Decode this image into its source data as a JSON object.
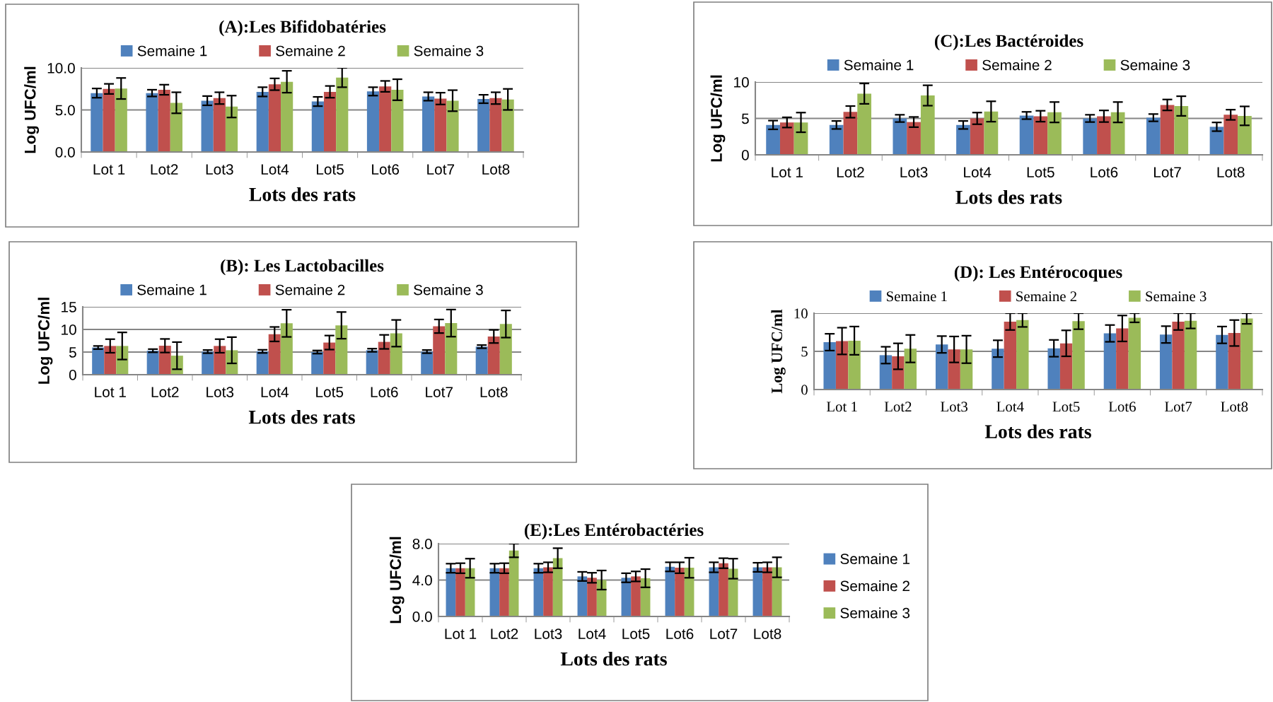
{
  "chart_data": [
    {
      "type": "bar",
      "title": "(A):Les Bifidobatéries",
      "xlabel": "Lots des rats",
      "ylabel": "Log UFC/ml",
      "categories": [
        "Lot 1",
        "Lot2",
        "Lot3",
        "Lot4",
        "Lot5",
        "Lot6",
        "Lot7",
        "Lot8"
      ],
      "ylim": [
        0,
        10
      ],
      "yticks": [
        {
          "value": 0,
          "label": "0.0"
        },
        {
          "value": 5,
          "label": "5.0"
        },
        {
          "value": 10,
          "label": "10.0"
        }
      ],
      "grid": "y",
      "legend": "top",
      "series": [
        {
          "name": "Semaine 1",
          "color": "#4f81bd",
          "values": [
            7.0,
            7.0,
            6.1,
            7.15,
            6.0,
            7.2,
            6.6,
            6.3
          ],
          "errors": [
            0.55,
            0.4,
            0.55,
            0.55,
            0.55,
            0.5,
            0.5,
            0.5
          ]
        },
        {
          "name": "Semaine 2",
          "color": "#c0504d",
          "values": [
            7.5,
            7.4,
            6.4,
            8.05,
            7.15,
            7.8,
            6.35,
            6.4
          ],
          "errors": [
            0.6,
            0.6,
            0.7,
            0.7,
            0.7,
            0.65,
            0.7,
            0.7
          ]
        },
        {
          "name": "Semaine 3",
          "color": "#9bbb59",
          "values": [
            7.55,
            5.85,
            5.4,
            8.35,
            8.85,
            7.4,
            6.1,
            6.25
          ],
          "errors": [
            1.25,
            1.25,
            1.3,
            1.3,
            1.15,
            1.25,
            1.25,
            1.25
          ]
        }
      ]
    },
    {
      "type": "bar",
      "title": "(C):Les Bactéroides",
      "xlabel": "Lots des rats",
      "ylabel": "Log UFC/ml",
      "categories": [
        "Lot 1",
        "Lot2",
        "Lot3",
        "Lot4",
        "Lot5",
        "Lot6",
        "Lot7",
        "Lot8"
      ],
      "ylim": [
        0,
        10
      ],
      "yticks": [
        0,
        5,
        10
      ],
      "grid": "y",
      "legend": "top",
      "series": [
        {
          "name": "Semaine 1",
          "color": "#4f81bd",
          "values": [
            4.1,
            4.1,
            5.0,
            4.1,
            5.4,
            5.0,
            5.1,
            3.85
          ],
          "errors": [
            0.6,
            0.55,
            0.5,
            0.55,
            0.5,
            0.5,
            0.5,
            0.6
          ]
        },
        {
          "name": "Semaine 2",
          "color": "#c0504d",
          "values": [
            4.45,
            5.9,
            4.5,
            5.0,
            5.3,
            5.3,
            6.85,
            5.5
          ],
          "errors": [
            0.7,
            0.8,
            0.7,
            0.8,
            0.75,
            0.8,
            0.75,
            0.7
          ]
        },
        {
          "name": "Semaine 3",
          "color": "#9bbb59",
          "values": [
            4.45,
            8.4,
            8.15,
            5.95,
            5.85,
            5.85,
            6.7,
            5.35
          ],
          "errors": [
            1.35,
            1.4,
            1.4,
            1.4,
            1.4,
            1.4,
            1.35,
            1.3
          ]
        }
      ]
    },
    {
      "type": "bar",
      "title": "(B): Les Lactobacilles",
      "xlabel": "Lots des rats",
      "ylabel": "Log UFC/ml",
      "categories": [
        "Lot 1",
        "Lot2",
        "Lot3",
        "Lot4",
        "Lot5",
        "Lot6",
        "Lot7",
        "Lot8"
      ],
      "ylim": [
        0,
        15
      ],
      "yticks": [
        0,
        5,
        10,
        15
      ],
      "grid": "y",
      "legend": "top",
      "series": [
        {
          "name": "Semaine 1",
          "color": "#4f81bd",
          "values": [
            6.0,
            5.3,
            5.1,
            5.15,
            5.0,
            5.4,
            5.1,
            6.2
          ],
          "errors": [
            0.35,
            0.35,
            0.35,
            0.35,
            0.35,
            0.35,
            0.35,
            0.35
          ]
        },
        {
          "name": "Semaine 2",
          "color": "#c0504d",
          "values": [
            6.35,
            6.4,
            6.35,
            8.95,
            7.1,
            7.25,
            10.7,
            8.45
          ],
          "errors": [
            1.5,
            1.5,
            1.5,
            1.6,
            1.55,
            1.55,
            1.5,
            1.45
          ]
        },
        {
          "name": "Semaine 3",
          "color": "#9bbb59",
          "values": [
            6.35,
            4.2,
            5.4,
            11.35,
            10.9,
            9.15,
            11.4,
            11.2
          ],
          "errors": [
            3.0,
            3.0,
            2.9,
            3.0,
            2.95,
            2.95,
            3.0,
            3.0
          ]
        }
      ]
    },
    {
      "type": "bar",
      "title": "(D): Les Entérocoques",
      "xlabel": "Lots des rats",
      "ylabel": "Log UFC/ml",
      "categories": [
        "Lot 1",
        "Lot2",
        "Lot3",
        "Lot4",
        "Lot5",
        "Lot6",
        "Lot7",
        "Lot8"
      ],
      "ylim": [
        0,
        10
      ],
      "yticks": [
        0,
        5,
        10
      ],
      "grid": "y",
      "legend": "top",
      "series": [
        {
          "name": "Semaine 1",
          "color": "#4f81bd",
          "values": [
            6.2,
            4.5,
            5.9,
            5.35,
            5.4,
            7.35,
            7.2,
            7.15
          ],
          "errors": [
            1.1,
            1.1,
            1.1,
            1.1,
            1.1,
            1.1,
            1.1,
            1.1
          ]
        },
        {
          "name": "Semaine 2",
          "color": "#c0504d",
          "values": [
            6.35,
            4.35,
            5.25,
            8.9,
            6.05,
            8.0,
            8.9,
            7.4
          ],
          "errors": [
            1.75,
            1.7,
            1.7,
            1.1,
            1.7,
            1.7,
            1.1,
            1.7
          ]
        },
        {
          "name": "Semaine 3",
          "color": "#9bbb59",
          "values": [
            6.4,
            5.35,
            5.25,
            9.1,
            8.95,
            9.4,
            9.0,
            9.3
          ],
          "errors": [
            1.85,
            1.8,
            1.8,
            0.9,
            1.05,
            0.6,
            1.0,
            0.7
          ]
        }
      ]
    },
    {
      "type": "bar",
      "title": "(E):Les Entérobactéries",
      "xlabel": "Lots des rats",
      "ylabel": "Log UFC/ml",
      "categories": [
        "Lot 1",
        "Lot2",
        "Lot3",
        "Lot4",
        "Lot5",
        "Lot6",
        "Lot7",
        "Lot8"
      ],
      "ylim": [
        0,
        8
      ],
      "yticks": [
        {
          "value": 0,
          "label": "0.0"
        },
        {
          "value": 4,
          "label": "4.0"
        },
        {
          "value": 8,
          "label": "8.0"
        }
      ],
      "grid": "y",
      "legend": "right",
      "series": [
        {
          "name": "Semaine 1",
          "color": "#4f81bd",
          "values": [
            5.3,
            5.3,
            5.3,
            4.4,
            4.25,
            5.45,
            5.4,
            5.4
          ],
          "errors": [
            0.5,
            0.5,
            0.5,
            0.5,
            0.5,
            0.5,
            0.55,
            0.5
          ]
        },
        {
          "name": "Semaine 2",
          "color": "#c0504d",
          "values": [
            5.3,
            5.3,
            5.4,
            4.25,
            4.4,
            5.35,
            5.85,
            5.4
          ],
          "errors": [
            0.55,
            0.55,
            0.55,
            0.55,
            0.55,
            0.6,
            0.55,
            0.55
          ]
        },
        {
          "name": "Semaine 3",
          "color": "#9bbb59",
          "values": [
            5.3,
            7.25,
            6.4,
            4.0,
            4.2,
            5.35,
            5.25,
            5.4
          ],
          "errors": [
            1.05,
            0.75,
            1.1,
            1.05,
            1.0,
            1.1,
            1.1,
            1.1
          ]
        }
      ]
    }
  ]
}
